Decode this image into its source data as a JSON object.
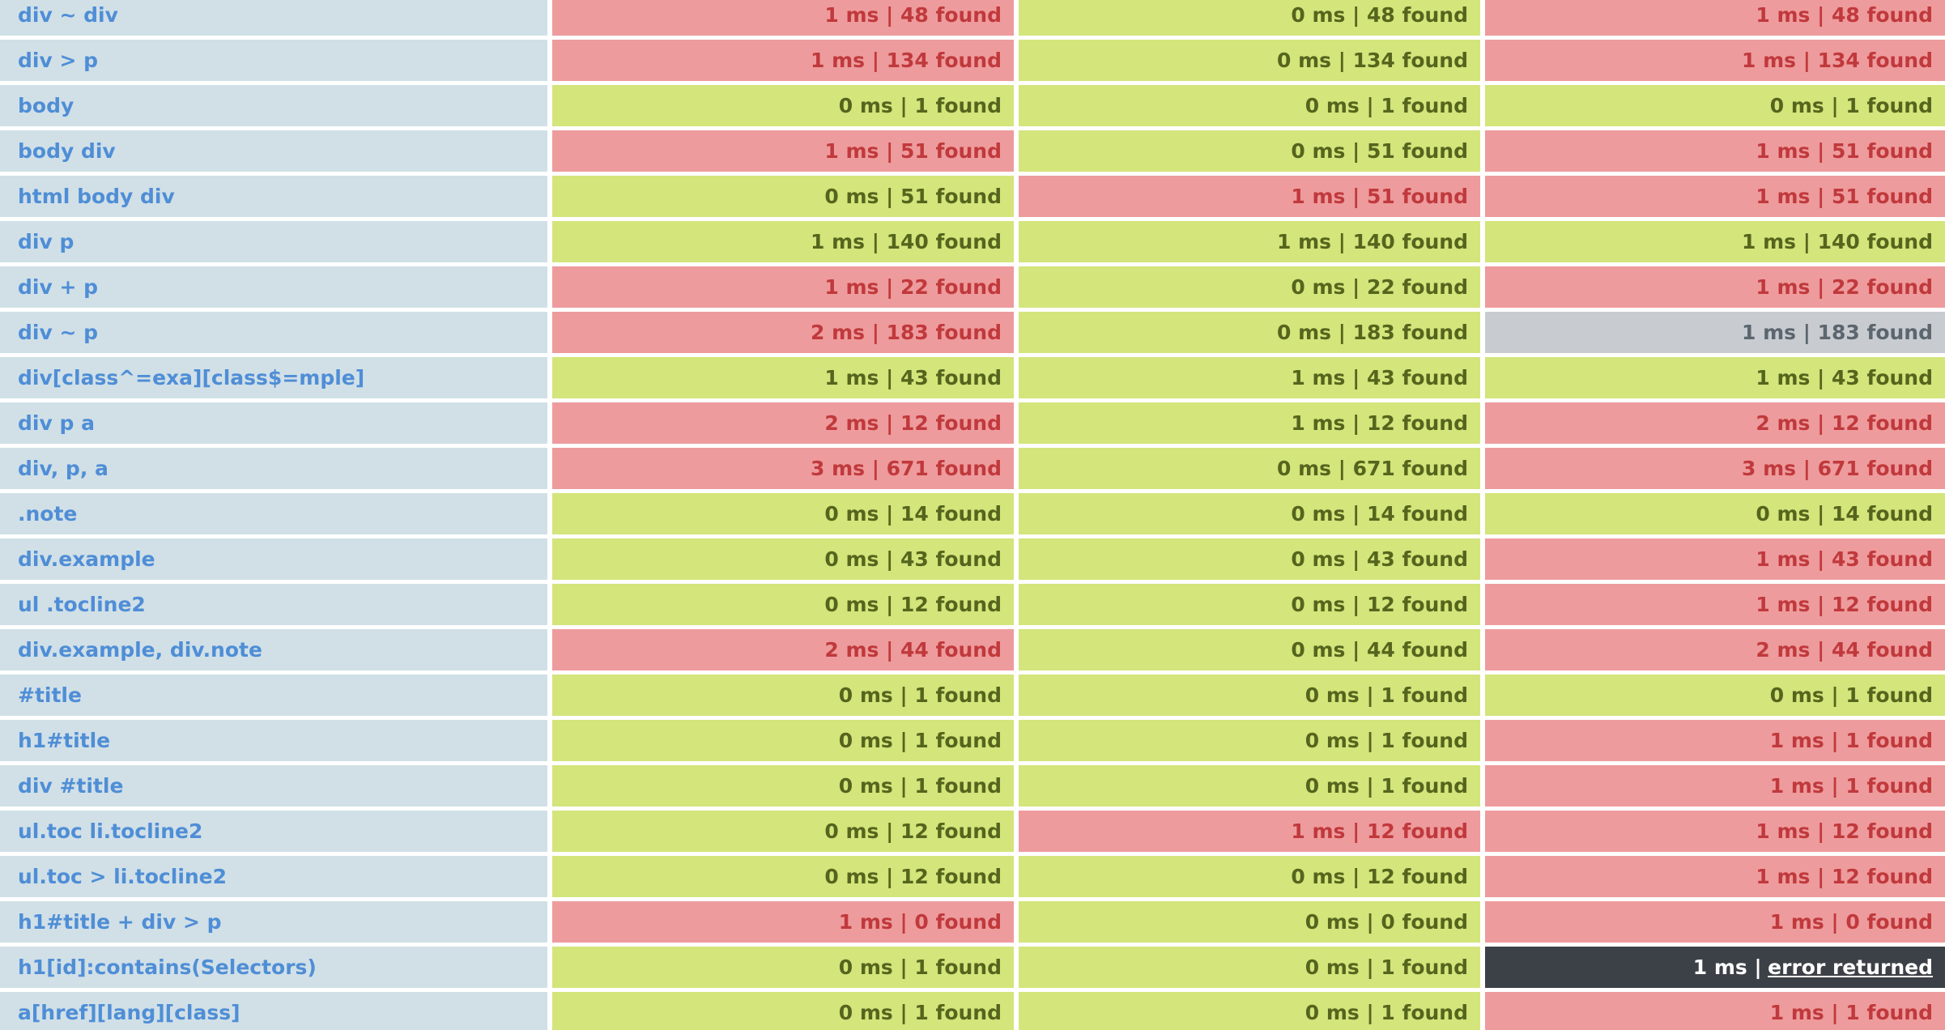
{
  "rows": [
    {
      "selector": "div ~ div",
      "cells": [
        {
          "text": "1 ms | 48 found",
          "status": "slow"
        },
        {
          "text": "0 ms | 48 found",
          "status": "fast"
        },
        {
          "text": "1 ms | 48 found",
          "status": "slow"
        }
      ]
    },
    {
      "selector": "div > p",
      "cells": [
        {
          "text": "1 ms | 134 found",
          "status": "slow"
        },
        {
          "text": "0 ms | 134 found",
          "status": "fast"
        },
        {
          "text": "1 ms | 134 found",
          "status": "slow"
        }
      ]
    },
    {
      "selector": "body",
      "cells": [
        {
          "text": "0 ms | 1 found",
          "status": "fast"
        },
        {
          "text": "0 ms | 1 found",
          "status": "fast"
        },
        {
          "text": "0 ms | 1 found",
          "status": "fast"
        }
      ]
    },
    {
      "selector": "body div",
      "cells": [
        {
          "text": "1 ms | 51 found",
          "status": "slow"
        },
        {
          "text": "0 ms | 51 found",
          "status": "fast"
        },
        {
          "text": "1 ms | 51 found",
          "status": "slow"
        }
      ]
    },
    {
      "selector": "html body div",
      "cells": [
        {
          "text": "0 ms | 51 found",
          "status": "fast"
        },
        {
          "text": "1 ms | 51 found",
          "status": "slow"
        },
        {
          "text": "1 ms | 51 found",
          "status": "slow"
        }
      ]
    },
    {
      "selector": "div p",
      "cells": [
        {
          "text": "1 ms | 140 found",
          "status": "fast"
        },
        {
          "text": "1 ms | 140 found",
          "status": "fast"
        },
        {
          "text": "1 ms | 140 found",
          "status": "fast"
        }
      ]
    },
    {
      "selector": "div + p",
      "cells": [
        {
          "text": "1 ms | 22 found",
          "status": "slow"
        },
        {
          "text": "0 ms | 22 found",
          "status": "fast"
        },
        {
          "text": "1 ms | 22 found",
          "status": "slow"
        }
      ]
    },
    {
      "selector": "div ~ p",
      "cells": [
        {
          "text": "2 ms | 183 found",
          "status": "slow"
        },
        {
          "text": "0 ms | 183 found",
          "status": "fast"
        },
        {
          "text": "1 ms | 183 found",
          "status": "neutral"
        }
      ]
    },
    {
      "selector": "div[class^=exa][class$=mple]",
      "cells": [
        {
          "text": "1 ms | 43 found",
          "status": "fast"
        },
        {
          "text": "1 ms | 43 found",
          "status": "fast"
        },
        {
          "text": "1 ms | 43 found",
          "status": "fast"
        }
      ]
    },
    {
      "selector": "div p a",
      "cells": [
        {
          "text": "2 ms | 12 found",
          "status": "slow"
        },
        {
          "text": "1 ms | 12 found",
          "status": "fast"
        },
        {
          "text": "2 ms | 12 found",
          "status": "slow"
        }
      ]
    },
    {
      "selector": "div, p, a",
      "cells": [
        {
          "text": "3 ms | 671 found",
          "status": "slow"
        },
        {
          "text": "0 ms | 671 found",
          "status": "fast"
        },
        {
          "text": "3 ms | 671 found",
          "status": "slow"
        }
      ]
    },
    {
      "selector": ".note",
      "cells": [
        {
          "text": "0 ms | 14 found",
          "status": "fast"
        },
        {
          "text": "0 ms | 14 found",
          "status": "fast"
        },
        {
          "text": "0 ms | 14 found",
          "status": "fast"
        }
      ]
    },
    {
      "selector": "div.example",
      "cells": [
        {
          "text": "0 ms | 43 found",
          "status": "fast"
        },
        {
          "text": "0 ms | 43 found",
          "status": "fast"
        },
        {
          "text": "1 ms | 43 found",
          "status": "slow"
        }
      ]
    },
    {
      "selector": "ul .tocline2",
      "cells": [
        {
          "text": "0 ms | 12 found",
          "status": "fast"
        },
        {
          "text": "0 ms | 12 found",
          "status": "fast"
        },
        {
          "text": "1 ms | 12 found",
          "status": "slow"
        }
      ]
    },
    {
      "selector": "div.example, div.note",
      "cells": [
        {
          "text": "2 ms | 44 found",
          "status": "slow"
        },
        {
          "text": "0 ms | 44 found",
          "status": "fast"
        },
        {
          "text": "2 ms | 44 found",
          "status": "slow"
        }
      ]
    },
    {
      "selector": "#title",
      "cells": [
        {
          "text": "0 ms | 1 found",
          "status": "fast"
        },
        {
          "text": "0 ms | 1 found",
          "status": "fast"
        },
        {
          "text": "0 ms | 1 found",
          "status": "fast"
        }
      ]
    },
    {
      "selector": "h1#title",
      "cells": [
        {
          "text": "0 ms | 1 found",
          "status": "fast"
        },
        {
          "text": "0 ms | 1 found",
          "status": "fast"
        },
        {
          "text": "1 ms | 1 found",
          "status": "slow"
        }
      ]
    },
    {
      "selector": "div #title",
      "cells": [
        {
          "text": "0 ms | 1 found",
          "status": "fast"
        },
        {
          "text": "0 ms | 1 found",
          "status": "fast"
        },
        {
          "text": "1 ms | 1 found",
          "status": "slow"
        }
      ]
    },
    {
      "selector": "ul.toc li.tocline2",
      "cells": [
        {
          "text": "0 ms | 12 found",
          "status": "fast"
        },
        {
          "text": "1 ms | 12 found",
          "status": "slow"
        },
        {
          "text": "1 ms | 12 found",
          "status": "slow"
        }
      ]
    },
    {
      "selector": "ul.toc > li.tocline2",
      "cells": [
        {
          "text": "0 ms | 12 found",
          "status": "fast"
        },
        {
          "text": "0 ms | 12 found",
          "status": "fast"
        },
        {
          "text": "1 ms | 12 found",
          "status": "slow"
        }
      ]
    },
    {
      "selector": "h1#title + div > p",
      "cells": [
        {
          "text": "1 ms | 0 found",
          "status": "slow"
        },
        {
          "text": "0 ms | 0 found",
          "status": "fast"
        },
        {
          "text": "1 ms | 0 found",
          "status": "slow"
        }
      ]
    },
    {
      "selector": "h1[id]:contains(Selectors)",
      "cells": [
        {
          "text": "0 ms | 1 found",
          "status": "fast"
        },
        {
          "text": "0 ms | 1 found",
          "status": "fast"
        },
        {
          "text": "1 ms |",
          "link": "error returned",
          "status": "error"
        }
      ]
    },
    {
      "selector": "a[href][lang][class]",
      "cells": [
        {
          "text": "0 ms | 1 found",
          "status": "fast"
        },
        {
          "text": "0 ms | 1 found",
          "status": "fast"
        },
        {
          "text": "1 ms | 1 found",
          "status": "slow"
        }
      ]
    }
  ]
}
